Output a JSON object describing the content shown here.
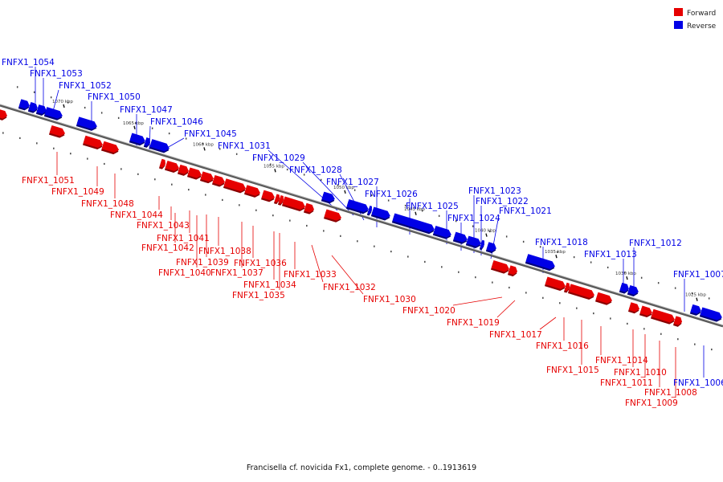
{
  "caption": "Francisella cf. novicida Fx1, complete genome. - 0..1913619",
  "legend": [
    {
      "label": "Forward",
      "color": "#e60000"
    },
    {
      "label": "Reverse",
      "color": "#0000e6"
    }
  ],
  "colors": {
    "forward": "#e60000",
    "reverse": "#0000e6",
    "backbone": "#777777"
  },
  "ticks": [
    "1070 kbp",
    "1065 kbp",
    "1060 kbp",
    "1055 kbp",
    "1050 kbp",
    "1045 kbp",
    "1040 kbp",
    "1035 kbp",
    "1030 kbp",
    "1025 kbp"
  ],
  "reverse_genes": [
    "FNFX1_1054",
    "FNFX1_1053",
    "FNFX1_1052",
    "FNFX1_1050",
    "FNFX1_1047",
    "FNFX1_1046",
    "FNFX1_1045",
    "FNFX1_1031",
    "FNFX1_1029",
    "FNFX1_1028",
    "FNFX1_1027",
    "FNFX1_1026",
    "FNFX1_1025",
    "FNFX1_1024",
    "FNFX1_1023",
    "FNFX1_1022",
    "FNFX1_1021",
    "FNFX1_1018",
    "FNFX1_1013",
    "FNFX1_1012",
    "FNFX1_1007",
    "FNFX1_1006"
  ],
  "forward_genes": [
    "FNFX1_1051",
    "FNFX1_1049",
    "FNFX1_1048",
    "FNFX1_1044",
    "FNFX1_1043",
    "FNFX1_1041",
    "FNFX1_1042",
    "FNFX1_1039",
    "FNFX1_1038",
    "FNFX1_1040",
    "FNFX1_1037",
    "FNFX1_1036",
    "FNFX1_1034",
    "FNFX1_1035",
    "FNFX1_1033",
    "FNFX1_1032",
    "FNFX1_1030",
    "FNFX1_1020",
    "FNFX1_1019",
    "FNFX1_1017",
    "FNFX1_1016",
    "FNFX1_1015",
    "FNFX1_1014",
    "FNFX1_1010",
    "FNFX1_1011",
    "FNFX1_1008",
    "FNFX1_1009"
  ]
}
